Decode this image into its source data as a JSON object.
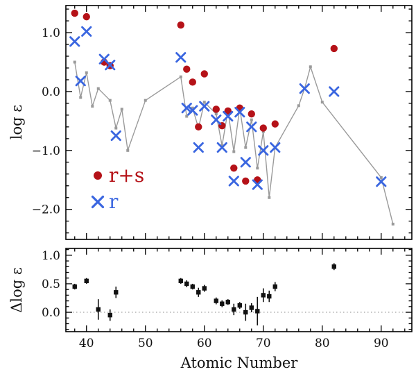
{
  "chart_data": [
    {
      "type": "scatter",
      "panel": "top",
      "title": "",
      "xlabel": "",
      "ylabel": "log ε",
      "xlim": [
        36.5,
        95.2
      ],
      "ylim": [
        -2.51,
        1.46
      ],
      "xticks": [
        40,
        50,
        60,
        70,
        80,
        90
      ],
      "xminor": 2,
      "yticks": [
        -2,
        -1,
        0,
        1
      ],
      "yminor": 0.2,
      "show_xlabels": false,
      "grid": false,
      "legend_position": "lower-left-inside",
      "series": [
        {
          "name": "scaled-solar-r-process",
          "style": "line+square",
          "color": "#9a9a9a",
          "legend": false,
          "points": [
            [
              38,
              0.5
            ],
            [
              39,
              -0.1
            ],
            [
              40,
              0.32
            ],
            [
              41,
              -0.25
            ],
            [
              42,
              0.05
            ],
            [
              44,
              -0.15
            ],
            [
              45,
              -0.62
            ],
            [
              46,
              -0.3
            ],
            [
              47,
              -1.0
            ],
            [
              50,
              -0.15
            ],
            [
              56,
              0.25
            ],
            [
              57,
              -0.42
            ],
            [
              58,
              -0.28
            ],
            [
              59,
              -0.62
            ],
            [
              60,
              -0.18
            ],
            [
              62,
              -0.38
            ],
            [
              63,
              -0.92
            ],
            [
              64,
              -0.32
            ],
            [
              65,
              -1.02
            ],
            [
              66,
              -0.28
            ],
            [
              67,
              -0.95
            ],
            [
              68,
              -0.48
            ],
            [
              69,
              -1.3
            ],
            [
              70,
              -0.68
            ],
            [
              71,
              -1.8
            ],
            [
              72,
              -0.95
            ],
            [
              76,
              -0.24
            ],
            [
              77,
              0.05
            ],
            [
              78,
              0.42
            ],
            [
              80,
              -0.18
            ],
            [
              90,
              -1.46
            ],
            [
              92,
              -2.25
            ]
          ]
        },
        {
          "name": "r+s",
          "style": "circle",
          "color": "#b51218",
          "legend": true,
          "points": [
            [
              38,
              1.33
            ],
            [
              40,
              1.27
            ],
            [
              43,
              0.5
            ],
            [
              44,
              0.44
            ],
            [
              56,
              1.13
            ],
            [
              57,
              0.38
            ],
            [
              58,
              0.16
            ],
            [
              59,
              -0.6
            ],
            [
              60,
              0.3
            ],
            [
              62,
              -0.3
            ],
            [
              63,
              -0.58
            ],
            [
              64,
              -0.33
            ],
            [
              65,
              -1.3
            ],
            [
              66,
              -0.28
            ],
            [
              67,
              -1.52
            ],
            [
              68,
              -0.38
            ],
            [
              69,
              -1.5
            ],
            [
              70,
              -0.62
            ],
            [
              72,
              -0.55
            ],
            [
              82,
              0.73
            ]
          ]
        },
        {
          "name": "r",
          "style": "x",
          "color": "#3a66e0",
          "legend": true,
          "points": [
            [
              38,
              0.85
            ],
            [
              39,
              0.18
            ],
            [
              40,
              1.02
            ],
            [
              43,
              0.55
            ],
            [
              44,
              0.45
            ],
            [
              45,
              -0.75
            ],
            [
              56,
              0.58
            ],
            [
              57,
              -0.28
            ],
            [
              58,
              -0.32
            ],
            [
              59,
              -0.95
            ],
            [
              60,
              -0.25
            ],
            [
              62,
              -0.48
            ],
            [
              63,
              -0.95
            ],
            [
              64,
              -0.42
            ],
            [
              65,
              -1.52
            ],
            [
              66,
              -0.35
            ],
            [
              67,
              -1.2
            ],
            [
              68,
              -0.6
            ],
            [
              69,
              -1.58
            ],
            [
              70,
              -1.0
            ],
            [
              72,
              -0.95
            ],
            [
              77,
              0.05
            ],
            [
              82,
              0.0
            ],
            [
              90,
              -1.53
            ]
          ]
        }
      ]
    },
    {
      "type": "scatter",
      "panel": "bottom",
      "title": "",
      "xlabel": "Atomic Number",
      "ylabel": "Δlog ε",
      "xlim": [
        36.5,
        95.2
      ],
      "ylim": [
        -0.34,
        1.12
      ],
      "xticks": [
        40,
        50,
        60,
        70,
        80,
        90
      ],
      "xminor": 2,
      "yticks": [
        0,
        0.5,
        1
      ],
      "yminor": 0.1,
      "show_xlabels": true,
      "grid": false,
      "refline": 0,
      "series": [
        {
          "name": "delta-log-eps",
          "style": "square-err",
          "color": "#111111",
          "legend": false,
          "points": [
            [
              38,
              0.45,
              0.05
            ],
            [
              40,
              0.55,
              0.05
            ],
            [
              42,
              0.05,
              0.18
            ],
            [
              44,
              -0.05,
              0.1
            ],
            [
              45,
              0.35,
              0.1
            ],
            [
              56,
              0.55,
              0.05
            ],
            [
              57,
              0.5,
              0.06
            ],
            [
              58,
              0.45,
              0.05
            ],
            [
              59,
              0.35,
              0.08
            ],
            [
              60,
              0.42,
              0.06
            ],
            [
              62,
              0.2,
              0.06
            ],
            [
              63,
              0.15,
              0.06
            ],
            [
              64,
              0.18,
              0.05
            ],
            [
              65,
              0.05,
              0.1
            ],
            [
              66,
              0.12,
              0.06
            ],
            [
              67,
              0.0,
              0.15
            ],
            [
              68,
              0.08,
              0.08
            ],
            [
              69,
              0.02,
              0.25
            ],
            [
              70,
              0.3,
              0.12
            ],
            [
              71,
              0.28,
              0.1
            ],
            [
              72,
              0.45,
              0.08
            ],
            [
              82,
              0.8,
              0.06
            ]
          ]
        }
      ]
    }
  ]
}
